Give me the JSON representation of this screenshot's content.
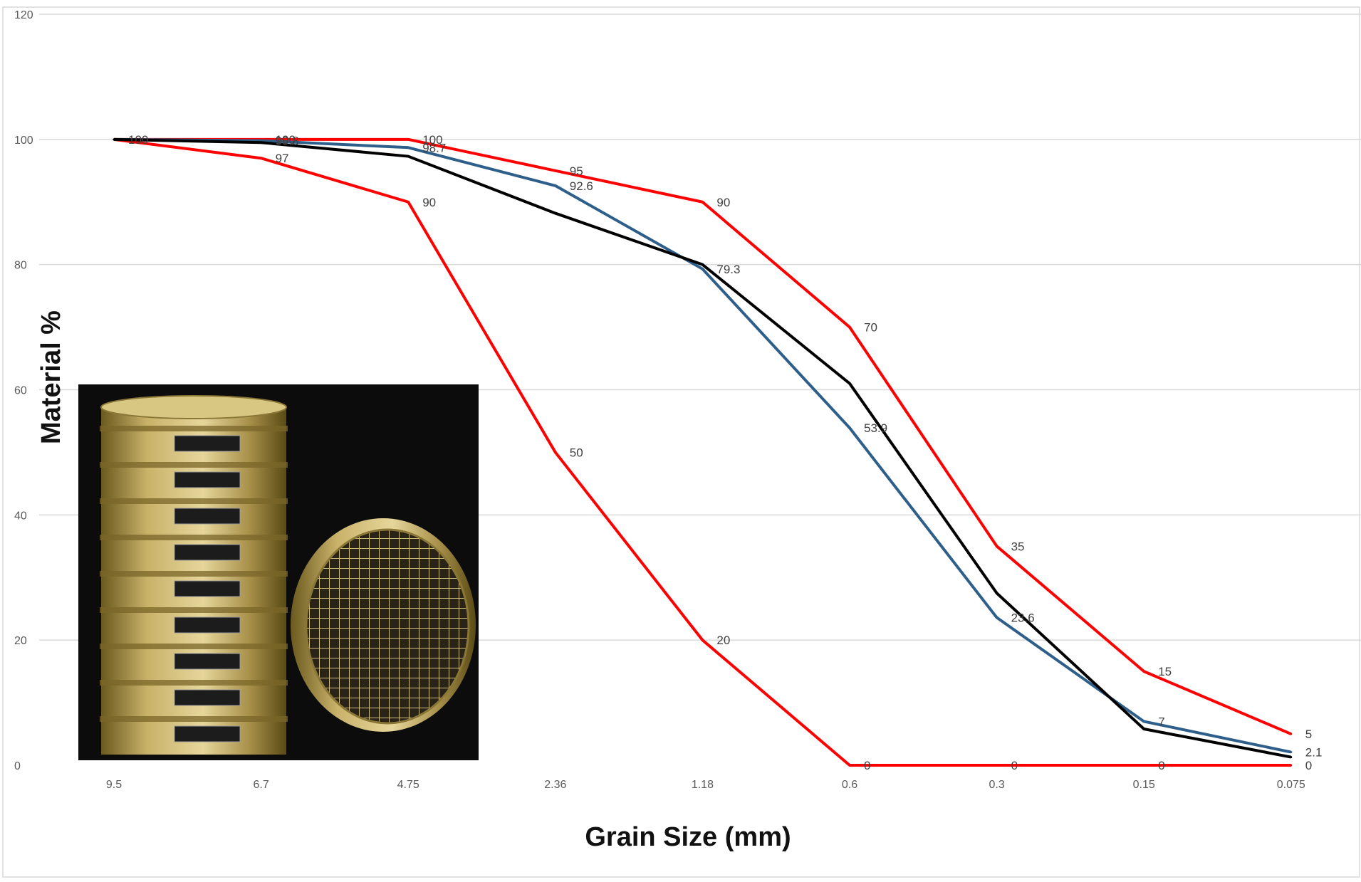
{
  "chart_data": {
    "type": "line",
    "title": "",
    "xlabel": "Grain Size (mm)",
    "ylabel": "Material %",
    "categories": [
      "9.5",
      "6.7",
      "4.75",
      "2.36",
      "1.18",
      "0.6",
      "0.3",
      "0.15",
      "0.075"
    ],
    "ylim": [
      0,
      120
    ],
    "yticks": [
      "0",
      "20",
      "40",
      "60",
      "80",
      "100",
      "120"
    ],
    "grid": true,
    "legend": "none",
    "series": [
      {
        "color": "#ff0000",
        "values": [
          100,
          100,
          100,
          95,
          90,
          70,
          35,
          15,
          5
        ],
        "labels": [
          "",
          "100",
          "100",
          "95",
          "90",
          "70",
          "35",
          "15",
          "5"
        ]
      },
      {
        "color": "#ff0000",
        "values": [
          100,
          97,
          90,
          50,
          20,
          0,
          0,
          0,
          0
        ],
        "labels": [
          "",
          "97",
          "90",
          "50",
          "20",
          "0",
          "0",
          "0",
          "0"
        ]
      },
      {
        "color": "#2e5f8a",
        "values": [
          100,
          99.8,
          98.7,
          92.6,
          79.3,
          53.9,
          23.6,
          7,
          2.1
        ],
        "labels": [
          "100",
          "99.8",
          "98.7",
          "92.6",
          "79.3",
          "53.9",
          "23.6",
          "7",
          "2.1"
        ]
      },
      {
        "color": "#000000",
        "values": [
          100,
          99.5,
          97.3,
          88.2,
          80.0,
          61.0,
          27.5,
          5.8,
          1.3
        ],
        "labels": [
          "",
          "",
          "",
          "",
          "",
          "",
          "",
          "",
          ""
        ]
      }
    ],
    "inset_image": "sieve-stack-photo"
  }
}
